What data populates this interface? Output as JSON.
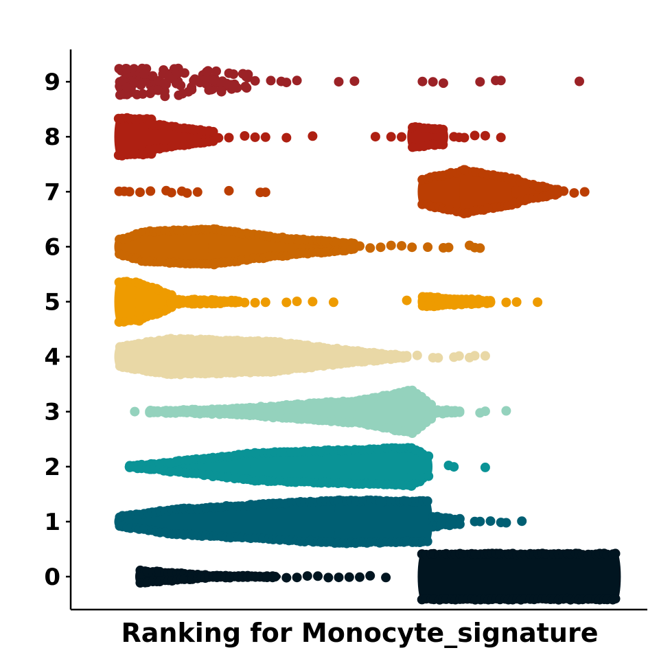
{
  "chart_data": {
    "type": "scatter",
    "subtype": "beeswarm",
    "title": "",
    "xlabel": "Ranking for Monocyte_signature",
    "ylabel": "",
    "x_ticks_shown": false,
    "xlim": [
      0,
      1
    ],
    "ylim": [
      -0.6,
      9.6
    ],
    "grid": false,
    "legend": "none",
    "categories": [
      "0",
      "1",
      "2",
      "3",
      "4",
      "5",
      "6",
      "7",
      "8",
      "9"
    ],
    "series": [
      {
        "category": "0",
        "color": "#011520",
        "blobs": [
          [
            0.08,
            0.22,
            0.35,
            0.1
          ],
          [
            0.22,
            0.34,
            0.1,
            0.05
          ],
          [
            0.62,
            0.99,
            1.0,
            1.0
          ]
        ],
        "points": [
          0.36,
          0.38,
          0.4,
          0.42,
          0.44,
          0.46,
          0.48,
          0.5,
          0.52,
          0.55
        ]
      },
      {
        "category": "1",
        "color": "#005F73",
        "blobs": [
          [
            0.04,
            0.15,
            0.3,
            0.6
          ],
          [
            0.15,
            0.46,
            0.6,
            0.95
          ],
          [
            0.46,
            0.63,
            0.95,
            0.9
          ],
          [
            0.64,
            0.69,
            0.3,
            0.2
          ]
        ],
        "points": [
          0.72,
          0.73,
          0.75,
          0.77,
          0.78,
          0.81
        ]
      },
      {
        "category": "2",
        "color": "#0A9396",
        "blobs": [
          [
            0.06,
            0.1,
            0.05,
            0.2
          ],
          [
            0.1,
            0.3,
            0.2,
            0.65
          ],
          [
            0.3,
            0.6,
            0.65,
            0.85
          ],
          [
            0.6,
            0.63,
            0.85,
            0.5
          ]
        ],
        "points": [
          0.06,
          0.67,
          0.68,
          0.74
        ]
      },
      {
        "category": "3",
        "color": "#94D2BD",
        "blobs": [
          [
            0.1,
            0.25,
            0.1,
            0.2
          ],
          [
            0.25,
            0.5,
            0.2,
            0.55
          ],
          [
            0.5,
            0.6,
            0.55,
            0.95
          ],
          [
            0.6,
            0.635,
            0.95,
            0.4
          ],
          [
            0.635,
            0.69,
            0.2,
            0.1
          ]
        ],
        "points": [
          0.07,
          0.1,
          0.73,
          0.74,
          0.78
        ]
      },
      {
        "category": "4",
        "color": "#E9D8A6",
        "blobs": [
          [
            0.04,
            0.14,
            0.5,
            0.8
          ],
          [
            0.14,
            0.33,
            0.8,
            0.7
          ],
          [
            0.33,
            0.48,
            0.7,
            0.35
          ],
          [
            0.48,
            0.59,
            0.35,
            0.1
          ]
        ],
        "points": [
          0.61,
          0.64,
          0.65,
          0.68,
          0.69,
          0.71,
          0.72,
          0.74
        ]
      },
      {
        "category": "5",
        "color": "#EE9B00",
        "blobs": [
          [
            0.04,
            0.08,
            0.9,
            0.85
          ],
          [
            0.08,
            0.14,
            0.85,
            0.35
          ],
          [
            0.14,
            0.27,
            0.2,
            0.08
          ],
          [
            0.62,
            0.75,
            0.3,
            0.15
          ]
        ],
        "points": [
          0.28,
          0.3,
          0.32,
          0.36,
          0.38,
          0.41,
          0.45,
          0.59,
          0.73,
          0.75,
          0.78,
          0.8,
          0.84
        ]
      },
      {
        "category": "6",
        "color": "#CA6702",
        "blobs": [
          [
            0.04,
            0.09,
            0.4,
            0.7
          ],
          [
            0.09,
            0.22,
            0.7,
            0.8
          ],
          [
            0.22,
            0.33,
            0.8,
            0.5
          ],
          [
            0.33,
            0.49,
            0.5,
            0.22
          ]
        ],
        "points": [
          0.5,
          0.52,
          0.54,
          0.56,
          0.58,
          0.6,
          0.63,
          0.66,
          0.67,
          0.71,
          0.72,
          0.73
        ]
      },
      {
        "category": "7",
        "color": "#BB3E03",
        "blobs": [
          [
            0.62,
            0.7,
            0.6,
            0.95
          ],
          [
            0.7,
            0.8,
            0.95,
            0.6
          ],
          [
            0.8,
            0.88,
            0.5,
            0.18
          ]
        ],
        "points": [
          0.04,
          0.05,
          0.06,
          0.08,
          0.1,
          0.13,
          0.14,
          0.16,
          0.17,
          0.19,
          0.25,
          0.31,
          0.32,
          0.89,
          0.91,
          0.93
        ]
      },
      {
        "category": "8",
        "color": "#AE2012",
        "blobs": [
          [
            0.04,
            0.1,
            0.85,
            0.8
          ],
          [
            0.1,
            0.22,
            0.6,
            0.3
          ],
          [
            0.6,
            0.66,
            0.5,
            0.4
          ]
        ],
        "points": [
          0.23,
          0.25,
          0.28,
          0.3,
          0.32,
          0.36,
          0.41,
          0.53,
          0.56,
          0.58,
          0.68,
          0.69,
          0.7,
          0.72,
          0.74,
          0.77
        ]
      },
      {
        "category": "9",
        "color": "#9B2226",
        "scatter": [
          [
            0.04,
            0.29,
            0.7,
            120
          ]
        ],
        "points": [
          0.3,
          0.33,
          0.35,
          0.36,
          0.38,
          0.46,
          0.49,
          0.62,
          0.64,
          0.66,
          0.73,
          0.76,
          0.77,
          0.92
        ]
      }
    ]
  }
}
